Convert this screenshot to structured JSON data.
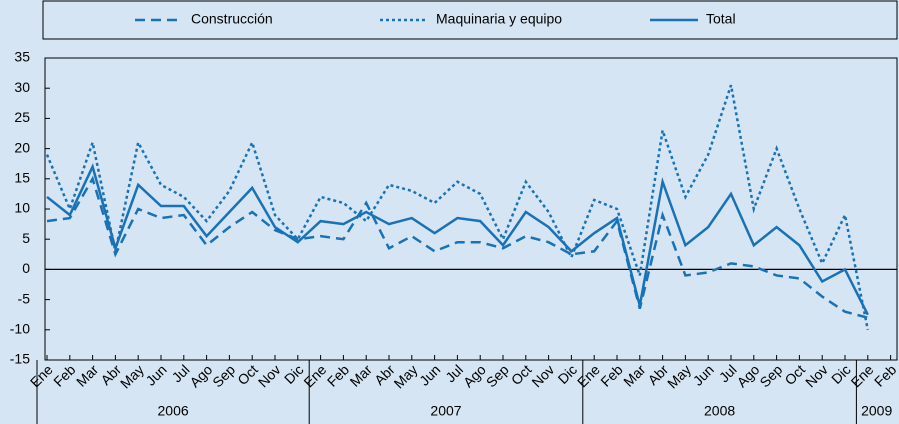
{
  "chart_data": {
    "type": "line",
    "categories": [
      "Ene",
      "Feb",
      "Mar",
      "Abr",
      "May",
      "Jun",
      "Jul",
      "Ago",
      "Sep",
      "Oct",
      "Nov",
      "Dic",
      "Ene",
      "Feb",
      "Mar",
      "Abr",
      "May",
      "Jun",
      "Jul",
      "Ago",
      "Sep",
      "Oct",
      "Nov",
      "Dic",
      "Ene",
      "Feb",
      "Mar",
      "Abr",
      "May",
      "Jun",
      "Jul",
      "Ago",
      "Sep",
      "Oct",
      "Nov",
      "Dic",
      "Ene",
      "Feb"
    ],
    "x_groups": [
      {
        "label": "2006",
        "count": 12
      },
      {
        "label": "2007",
        "count": 12
      },
      {
        "label": "2008",
        "count": 12
      },
      {
        "label": "2009",
        "count": 2
      }
    ],
    "series": [
      {
        "name": "Construcción",
        "color": "#1a72b6",
        "dash": "dashed",
        "values": [
          8,
          8.5,
          15,
          2.5,
          10,
          8.5,
          9,
          4,
          7,
          9.5,
          6.5,
          5,
          5.5,
          5,
          11,
          3.5,
          5.5,
          3,
          4.5,
          4.5,
          3.5,
          5.5,
          4.5,
          2.5,
          3,
          8,
          -6.5,
          9,
          -1,
          -0.5,
          1,
          0.5,
          -1,
          -1.5,
          -4.5,
          -7,
          -8,
          null
        ]
      },
      {
        "name": "Maquinaria y equipo",
        "color": "#1a72b6",
        "dash": "dotted",
        "values": [
          19,
          10,
          21,
          3,
          21,
          14,
          12,
          8,
          13,
          21,
          9,
          5,
          12,
          11,
          8,
          14,
          13,
          11,
          14.5,
          12.5,
          5,
          14.5,
          9.5,
          2,
          11.5,
          10,
          -1,
          23,
          12,
          19,
          30.5,
          10,
          20,
          10,
          1,
          9,
          -10,
          null
        ]
      },
      {
        "name": "Total",
        "color": "#1a72b6",
        "dash": "solid",
        "values": [
          12,
          9,
          17,
          3.5,
          14,
          10.5,
          10.5,
          5.5,
          9.5,
          13.5,
          7,
          4.5,
          8,
          7.5,
          9.5,
          7.5,
          8.5,
          6,
          8.5,
          8,
          4,
          9.5,
          7,
          3,
          6,
          8.5,
          -6,
          14.5,
          4,
          7,
          12.5,
          4,
          7,
          4,
          -2,
          0,
          -7.5,
          null
        ]
      }
    ],
    "ylim": [
      -15,
      35
    ],
    "yticks": [
      -15,
      -10,
      -5,
      0,
      5,
      10,
      15,
      20,
      25,
      30,
      35
    ],
    "legend": "top"
  }
}
